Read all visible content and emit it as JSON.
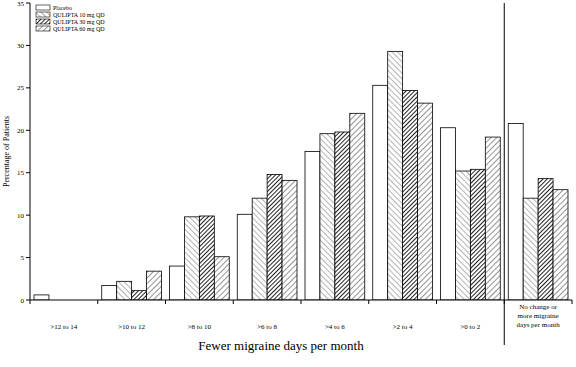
{
  "chart_data": {
    "type": "bar",
    "x_label": "Fewer migraine days per month",
    "y_label": "Percentage of Patients",
    "categories": [
      ">12 to 14",
      ">10 to 12",
      ">8 to 10",
      ">6 to 8",
      ">4 to 6",
      ">2 to 4",
      ">0 to 2",
      "No change or more migraine days per month"
    ],
    "series": [
      {
        "name": "Placebo",
        "color": "#ffffff",
        "values": [
          0.6,
          1.7,
          4.0,
          10.1,
          17.5,
          25.3,
          20.3,
          20.8
        ]
      },
      {
        "name": "QULIPTA 10 mg QD",
        "color": "#8c8c8c",
        "values": [
          0,
          2.2,
          9.8,
          12.0,
          19.6,
          29.3,
          15.2,
          12.0
        ]
      },
      {
        "name": "QULIPTA 30 mg QD",
        "color": "#222222",
        "values": [
          0,
          1.1,
          9.9,
          14.8,
          19.8,
          24.7,
          15.4,
          14.3
        ]
      },
      {
        "name": "QULIPTA 60 mg QD",
        "color": "#5a5a5a",
        "values": [
          0,
          3.4,
          5.1,
          14.1,
          22.0,
          23.2,
          19.2,
          13.0
        ]
      }
    ],
    "ylim": [
      0,
      35
    ],
    "yticks": [
      0,
      5,
      10,
      15,
      20,
      25,
      30,
      35
    ],
    "grid": false,
    "legend": "upper-left"
  }
}
